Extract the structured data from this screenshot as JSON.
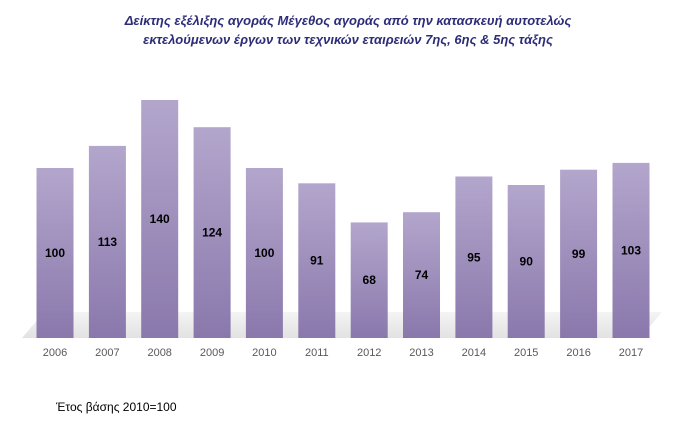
{
  "chart_data": {
    "type": "bar",
    "title_lines": [
      "Δείκτης εξέλιξης αγοράς Μέγεθος αγοράς από την κατασκευή αυτοτελώς",
      "εκτελούμενων έργων των τεχνικών εταιρειών 7ης, 6ης & 5ης τάξης"
    ],
    "categories": [
      "2006",
      "2007",
      "2008",
      "2009",
      "2010",
      "2011",
      "2012",
      "2013",
      "2014",
      "2015",
      "2016",
      "2017"
    ],
    "values": [
      100,
      113,
      140,
      124,
      100,
      91,
      68,
      74,
      95,
      90,
      99,
      103
    ],
    "xlabel": "",
    "ylabel": "",
    "ylim": [
      0,
      150
    ],
    "grid": false,
    "legend": "none",
    "data_labels": "inside-bar"
  },
  "footnote": "Έτος βάσης 2010=100",
  "colors": {
    "bar_top": "#b3a6cc",
    "bar_bottom": "#8a78ac",
    "title": "#2c2c78",
    "axis_text": "#595959",
    "floor": "#e9e9e9"
  }
}
